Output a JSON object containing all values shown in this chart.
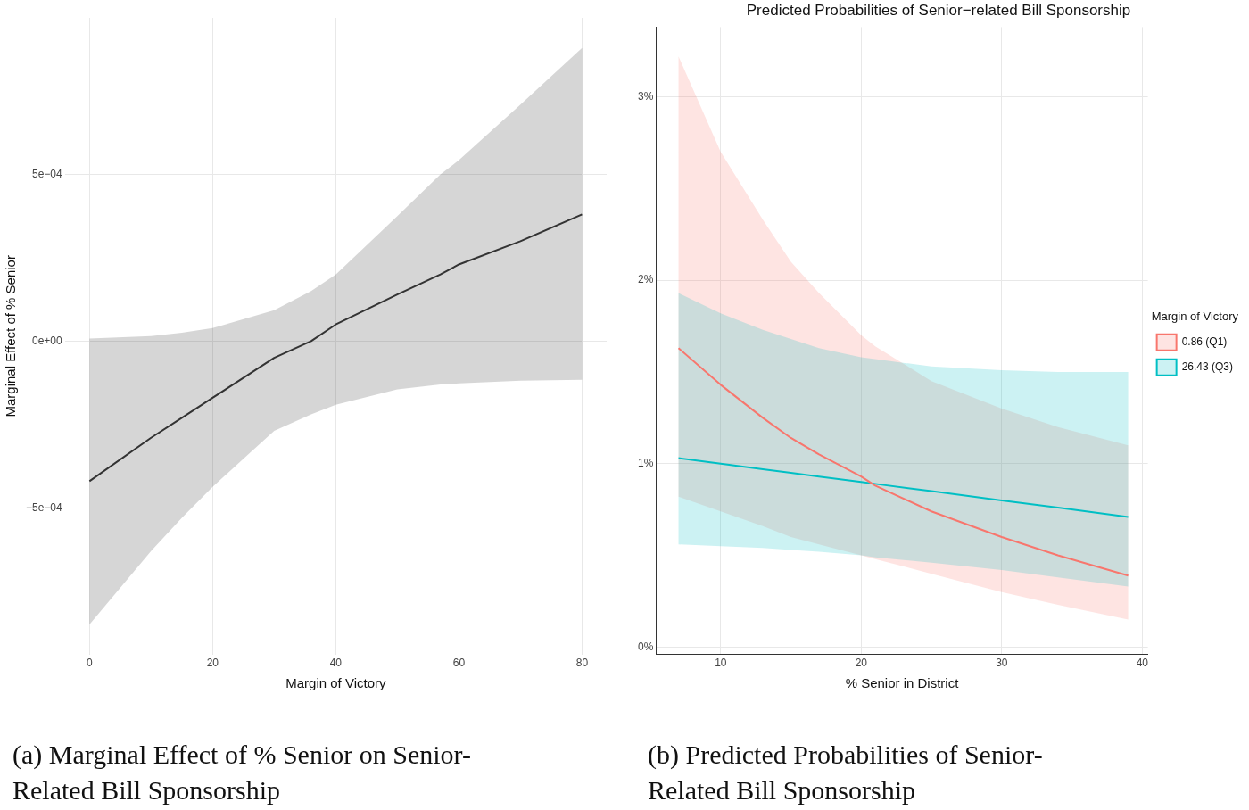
{
  "chart_data": [
    {
      "type": "line",
      "xlabel": "Margin of Victory",
      "ylabel": "Marginal Effect of % Senior",
      "x": [
        0,
        10,
        15,
        20,
        30,
        36,
        40,
        50,
        57,
        60,
        70,
        80
      ],
      "series": [
        {
          "color": "#333333",
          "values": [
            -0.00042,
            -0.00029,
            -0.00023,
            -0.00017,
            -5e-05,
            0,
            5e-05,
            0.00014,
            0.0002,
            0.00023,
            0.0003,
            0.00038
          ],
          "lower": [
            -0.00085,
            -0.00063,
            -0.00053,
            -0.000437,
            -0.000269,
            -0.00022,
            -0.000191,
            -0.000145,
            -0.00013,
            -0.000127,
            -0.000119,
            -0.000116
          ],
          "upper": [
            8e-06,
            1.5e-05,
            2.5e-05,
            3.9e-05,
            9.3e-05,
            0.00015,
            0.0002,
            0.000375,
            0.0005,
            0.000543,
            0.00071,
            0.00088
          ]
        }
      ],
      "xlim": [
        -4,
        84
      ],
      "ylim": [
        -0.00094,
        0.00097
      ],
      "xticks": [
        0,
        20,
        40,
        60,
        80
      ],
      "yticks": [
        {
          "value": -0.0005,
          "label": "−5e−04"
        },
        {
          "value": 0,
          "label": "0e+00"
        },
        {
          "value": 0.0005,
          "label": "5e−04"
        }
      ],
      "grid": true,
      "legend": false,
      "annotations": [
        "(a) Marginal Effect of % Senior on Senior-Related Bill Sponsorship"
      ]
    },
    {
      "type": "line",
      "title": "Predicted Probabilities of Senior−related Bill Sponsorship",
      "xlabel": "% Senior in District",
      "legend_title": "Margin of Victory",
      "x": [
        7,
        10,
        13,
        15,
        17,
        20,
        21,
        25,
        30,
        34,
        39
      ],
      "series": [
        {
          "name": "0.86 (Q1)",
          "color": "#f8766d",
          "values": [
            1.63,
            1.43,
            1.25,
            1.14,
            1.05,
            0.93,
            0.88,
            0.74,
            0.6,
            0.5,
            0.39
          ],
          "lower": [
            0.82,
            0.74,
            0.66,
            0.6,
            0.56,
            0.5,
            0.48,
            0.4,
            0.3,
            0.23,
            0.15
          ],
          "upper": [
            3.22,
            2.7,
            2.33,
            2.1,
            1.93,
            1.7,
            1.64,
            1.45,
            1.3,
            1.2,
            1.1
          ]
        },
        {
          "name": "26.43 (Q3)",
          "color": "#00bfc4",
          "values": [
            1.03,
            1.0,
            0.97,
            0.95,
            0.93,
            0.9,
            0.89,
            0.85,
            0.8,
            0.76,
            0.71
          ],
          "lower": [
            0.56,
            0.55,
            0.54,
            0.53,
            0.52,
            0.5,
            0.49,
            0.46,
            0.42,
            0.38,
            0.33
          ],
          "upper": [
            1.93,
            1.82,
            1.73,
            1.68,
            1.63,
            1.58,
            1.57,
            1.53,
            1.51,
            1.5,
            1.5
          ]
        }
      ],
      "xlim": [
        5.4,
        40.4
      ],
      "ylim": [
        -0.04,
        3.38
      ],
      "xticks": [
        10,
        20,
        30,
        40
      ],
      "yticks": [
        {
          "value": 0,
          "label": "0%"
        },
        {
          "value": 1,
          "label": "1%"
        },
        {
          "value": 2,
          "label": "2%"
        },
        {
          "value": 3,
          "label": "3%"
        }
      ],
      "grid": true,
      "legend": "right",
      "annotations": [
        "(b) Predicted Probabilities of Senior-Related Bill Sponsorship"
      ]
    }
  ]
}
